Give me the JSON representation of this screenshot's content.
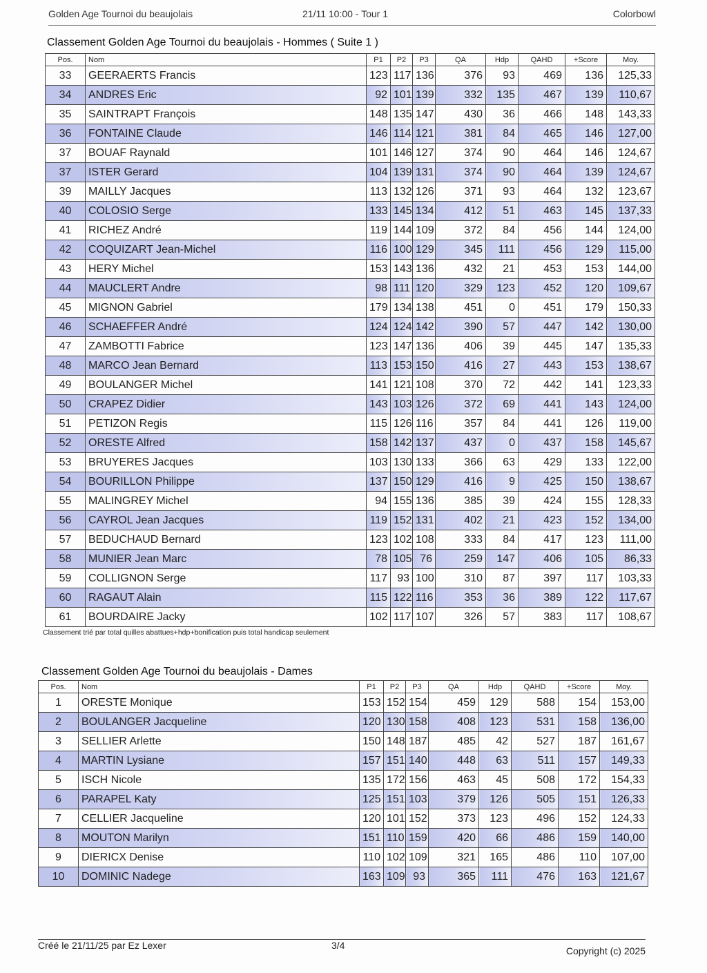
{
  "header": {
    "left": "Golden Age Tournoi du beaujolais",
    "center": "21/11 10:00 - Tour 1",
    "right": "Colorbowl"
  },
  "columns": [
    "Pos.",
    "Nom",
    "P1",
    "P2",
    "P3",
    "QA",
    "Hdp",
    "QAHD",
    "+Score",
    "Moy."
  ],
  "hommes": {
    "title": "Classement Golden Age Tournoi du beaujolais - Hommes ( Suite 1 )",
    "rows": [
      [
        "33",
        "GEERAERTS Francis",
        "123",
        "117",
        "136",
        "376",
        "93",
        "469",
        "136",
        "125,33"
      ],
      [
        "34",
        "ANDRES Eric",
        "92",
        "101",
        "139",
        "332",
        "135",
        "467",
        "139",
        "110,67"
      ],
      [
        "35",
        "SAINTRAPT François",
        "148",
        "135",
        "147",
        "430",
        "36",
        "466",
        "148",
        "143,33"
      ],
      [
        "36",
        "FONTAINE Claude",
        "146",
        "114",
        "121",
        "381",
        "84",
        "465",
        "146",
        "127,00"
      ],
      [
        "37",
        "BOUAF Raynald",
        "101",
        "146",
        "127",
        "374",
        "90",
        "464",
        "146",
        "124,67"
      ],
      [
        "37",
        "ISTER Gerard",
        "104",
        "139",
        "131",
        "374",
        "90",
        "464",
        "139",
        "124,67"
      ],
      [
        "39",
        "MAILLY Jacques",
        "113",
        "132",
        "126",
        "371",
        "93",
        "464",
        "132",
        "123,67"
      ],
      [
        "40",
        "COLOSIO Serge",
        "133",
        "145",
        "134",
        "412",
        "51",
        "463",
        "145",
        "137,33"
      ],
      [
        "41",
        "RICHEZ André",
        "119",
        "144",
        "109",
        "372",
        "84",
        "456",
        "144",
        "124,00"
      ],
      [
        "42",
        "COQUIZART Jean-Michel",
        "116",
        "100",
        "129",
        "345",
        "111",
        "456",
        "129",
        "115,00"
      ],
      [
        "43",
        "HERY Michel",
        "153",
        "143",
        "136",
        "432",
        "21",
        "453",
        "153",
        "144,00"
      ],
      [
        "44",
        "MAUCLERT Andre",
        "98",
        "111",
        "120",
        "329",
        "123",
        "452",
        "120",
        "109,67"
      ],
      [
        "45",
        "MIGNON Gabriel",
        "179",
        "134",
        "138",
        "451",
        "0",
        "451",
        "179",
        "150,33"
      ],
      [
        "46",
        "SCHAEFFER André",
        "124",
        "124",
        "142",
        "390",
        "57",
        "447",
        "142",
        "130,00"
      ],
      [
        "47",
        "ZAMBOTTI Fabrice",
        "123",
        "147",
        "136",
        "406",
        "39",
        "445",
        "147",
        "135,33"
      ],
      [
        "48",
        "MARCO Jean Bernard",
        "113",
        "153",
        "150",
        "416",
        "27",
        "443",
        "153",
        "138,67"
      ],
      [
        "49",
        "BOULANGER Michel",
        "141",
        "121",
        "108",
        "370",
        "72",
        "442",
        "141",
        "123,33"
      ],
      [
        "50",
        "CRAPEZ Didier",
        "143",
        "103",
        "126",
        "372",
        "69",
        "441",
        "143",
        "124,00"
      ],
      [
        "51",
        "PETIZON Regis",
        "115",
        "126",
        "116",
        "357",
        "84",
        "441",
        "126",
        "119,00"
      ],
      [
        "52",
        "ORESTE Alfred",
        "158",
        "142",
        "137",
        "437",
        "0",
        "437",
        "158",
        "145,67"
      ],
      [
        "53",
        "BRUYERES Jacques",
        "103",
        "130",
        "133",
        "366",
        "63",
        "429",
        "133",
        "122,00"
      ],
      [
        "54",
        "BOURILLON Philippe",
        "137",
        "150",
        "129",
        "416",
        "9",
        "425",
        "150",
        "138,67"
      ],
      [
        "55",
        "MALINGREY Michel",
        "94",
        "155",
        "136",
        "385",
        "39",
        "424",
        "155",
        "128,33"
      ],
      [
        "56",
        "CAYROL Jean Jacques",
        "119",
        "152",
        "131",
        "402",
        "21",
        "423",
        "152",
        "134,00"
      ],
      [
        "57",
        "BEDUCHAUD Bernard",
        "123",
        "102",
        "108",
        "333",
        "84",
        "417",
        "123",
        "111,00"
      ],
      [
        "58",
        "MUNIER Jean Marc",
        "78",
        "105",
        "76",
        "259",
        "147",
        "406",
        "105",
        "86,33"
      ],
      [
        "59",
        "COLLIGNON Serge",
        "117",
        "93",
        "100",
        "310",
        "87",
        "397",
        "117",
        "103,33"
      ],
      [
        "60",
        "RAGAUT Alain",
        "115",
        "122",
        "116",
        "353",
        "36",
        "389",
        "122",
        "117,67"
      ],
      [
        "61",
        "BOURDAIRE Jacky",
        "102",
        "117",
        "107",
        "326",
        "57",
        "383",
        "117",
        "108,67"
      ]
    ],
    "note": "Classement trié par total quilles abattues+hdp+bonification puis total handicap seulement"
  },
  "dames": {
    "title": "Classement Golden Age Tournoi du beaujolais - Dames",
    "rows": [
      [
        "1",
        "ORESTE Monique",
        "153",
        "152",
        "154",
        "459",
        "129",
        "588",
        "154",
        "153,00"
      ],
      [
        "2",
        "BOULANGER Jacqueline",
        "120",
        "130",
        "158",
        "408",
        "123",
        "531",
        "158",
        "136,00"
      ],
      [
        "3",
        "SELLIER Arlette",
        "150",
        "148",
        "187",
        "485",
        "42",
        "527",
        "187",
        "161,67"
      ],
      [
        "4",
        "MARTIN Lysiane",
        "157",
        "151",
        "140",
        "448",
        "63",
        "511",
        "157",
        "149,33"
      ],
      [
        "5",
        "ISCH Nicole",
        "135",
        "172",
        "156",
        "463",
        "45",
        "508",
        "172",
        "154,33"
      ],
      [
        "6",
        "PARAPEL Katy",
        "125",
        "151",
        "103",
        "379",
        "126",
        "505",
        "151",
        "126,33"
      ],
      [
        "7",
        "CELLIER Jacqueline",
        "120",
        "101",
        "152",
        "373",
        "123",
        "496",
        "152",
        "124,33"
      ],
      [
        "8",
        "MOUTON Marilyn",
        "151",
        "110",
        "159",
        "420",
        "66",
        "486",
        "159",
        "140,00"
      ],
      [
        "9",
        "DIERICX Denise",
        "110",
        "102",
        "109",
        "321",
        "165",
        "486",
        "110",
        "107,00"
      ],
      [
        "10",
        "DOMINIC Nadege",
        "163",
        "109",
        "93",
        "365",
        "111",
        "476",
        "163",
        "121,67"
      ]
    ]
  },
  "footer": {
    "left": "Créé le 21/11/25 par Ez Lexer",
    "center": "3/4",
    "right": "Copyright (c) 2025"
  }
}
